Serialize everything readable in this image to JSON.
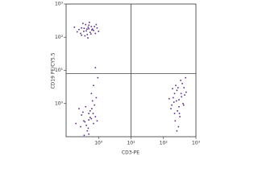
{
  "chart_data": {
    "type": "scatter",
    "x_label": "CD3-PE",
    "y_label": "CD19 PE/CY5.5",
    "xscale": "log",
    "yscale": "log",
    "xlim": [
      0.1,
      1000
    ],
    "ylim": [
      0.1,
      1000
    ],
    "xticks": [
      {
        "value": 1,
        "label": "10⁰"
      },
      {
        "value": 10,
        "label": "10¹"
      },
      {
        "value": 100,
        "label": "10²"
      },
      {
        "value": 1000,
        "label": "10³"
      }
    ],
    "yticks": [
      {
        "value": 1,
        "label": "10⁰"
      },
      {
        "value": 10,
        "label": "10¹"
      },
      {
        "value": 100,
        "label": "10²"
      },
      {
        "value": 1000,
        "label": "10³"
      }
    ],
    "quadrant": {
      "x": 10,
      "y": 8,
      "color": "#444444"
    },
    "series": [
      {
        "color": "#5b2c83",
        "x": [
          0.35,
          0.5,
          0.28,
          0.6,
          0.45,
          0.3,
          0.7,
          0.4,
          0.55,
          0.25,
          0.8,
          0.38,
          0.48,
          0.65,
          0.33,
          0.9,
          0.42,
          0.58,
          0.22,
          0.5,
          0.75,
          0.36,
          1.0,
          0.47,
          0.62,
          0.3,
          0.52,
          0.18,
          0.44,
          0.85,
          0.35,
          0.5,
          0.28,
          0.6,
          0.45,
          0.4,
          0.7,
          0.55,
          0.3,
          0.65,
          0.5,
          0.38,
          0.8,
          0.25,
          0.6,
          0.42,
          0.75,
          0.33,
          0.9,
          0.48,
          0.7,
          0.55,
          0.2,
          0.62,
          0.85,
          0.36,
          0.5,
          0.68,
          0.95,
          0.8,
          250,
          300,
          200,
          350,
          220,
          400,
          280,
          180,
          320,
          260,
          450,
          230,
          380,
          300,
          170,
          500,
          270,
          340,
          210,
          420,
          290,
          240,
          360,
          190,
          480,
          310,
          150,
          260,
          430,
          220
        ],
        "y": [
          150,
          180,
          130,
          210,
          120,
          190,
          160,
          240,
          140,
          170,
          130,
          110,
          200,
          175,
          260,
          190,
          155,
          125,
          145,
          230,
          210,
          185,
          150,
          95,
          165,
          115,
          280,
          200,
          175,
          240,
          0.3,
          0.5,
          0.2,
          0.35,
          0.15,
          0.8,
          0.25,
          0.6,
          0.45,
          1.2,
          0.12,
          0.28,
          0.4,
          0.7,
          2.0,
          0.22,
          0.9,
          0.55,
          0.3,
          0.18,
          3.5,
          0.38,
          0.25,
          0.7,
          1.5,
          0.11,
          0.32,
          0.5,
          6,
          12,
          1.2,
          0.8,
          1.5,
          2,
          0.5,
          1,
          3,
          0.9,
          0.4,
          2.5,
          1.8,
          0.3,
          4,
          1.3,
          0.7,
          2.2,
          0.6,
          5,
          1.1,
          0.9,
          0.2,
          3.5,
          1.6,
          2.8,
          6,
          0.5,
          1.4,
          0.15,
          3,
          2
        ]
      }
    ]
  }
}
